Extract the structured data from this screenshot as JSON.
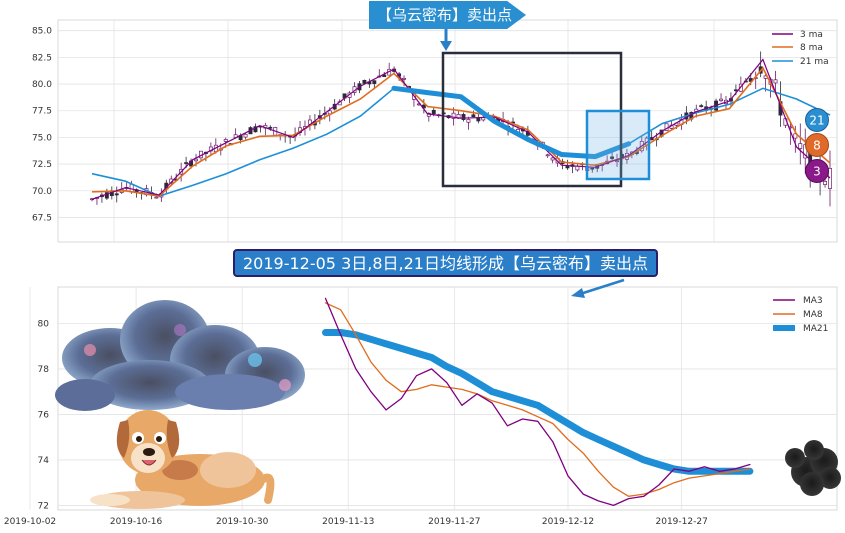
{
  "callouts": {
    "top": "【乌云密布】卖出点",
    "middle": "2019-12-05 3日,8日,21日均线形成【乌云密布】卖出点"
  },
  "markers": [
    {
      "label": "21",
      "color": "#2a8fd0"
    },
    {
      "label": "8",
      "color": "#e06a2a"
    },
    {
      "label": "3",
      "color": "#8a1a8a"
    }
  ],
  "colors": {
    "ma3": "#800080",
    "ma8": "#e06c1e",
    "ma21": "#1e8fd6",
    "box_dark": "#2a2e3a",
    "box_blue": "#1e8fd6"
  },
  "chart_data": [
    {
      "type": "line",
      "subtype": "candlestick-with-moving-averages",
      "title": "",
      "xlabel": "",
      "ylabel": "",
      "ylim": [
        65.2,
        86.0
      ],
      "yticks": [
        "67.5",
        "70.0",
        "72.5",
        "75.0",
        "77.5",
        "80.0",
        "82.5",
        "85.0"
      ],
      "grid": true,
      "legend": "top-right",
      "series": [
        {
          "name": "3 ma",
          "values": [
            69.2,
            70.3,
            69.6,
            72.9,
            74.5,
            76.1,
            75.0,
            77.4,
            79.8,
            81.4,
            77.2,
            76.8,
            76.9,
            75.5,
            72.4,
            72.2,
            73.3,
            75.6,
            77.4,
            78.4,
            82.3,
            74.1,
            71.2
          ]
        },
        {
          "name": "8 ma",
          "values": [
            69.9,
            70.0,
            69.5,
            72.3,
            74.2,
            75.1,
            75.2,
            77.0,
            78.6,
            81.0,
            77.9,
            77.5,
            77.0,
            75.7,
            72.7,
            72.4,
            73.2,
            75.2,
            77.0,
            77.7,
            81.5,
            75.3,
            72.6
          ]
        },
        {
          "name": "21 ma",
          "values": [
            71.6,
            70.9,
            69.5,
            70.5,
            71.6,
            72.9,
            74.0,
            75.3,
            77.0,
            79.6,
            79.2,
            78.8,
            76.5,
            74.8,
            73.4,
            73.2,
            74.4,
            76.3,
            77.3,
            78.1,
            79.6,
            78.6,
            77.1
          ]
        }
      ],
      "annotation_boxes": [
        {
          "x": [
            9.5,
            16.5
          ],
          "y": [
            70.4,
            82.8
          ]
        },
        {
          "x": [
            16.0,
            18.5
          ],
          "y": [
            71.2,
            77.4
          ]
        }
      ]
    },
    {
      "type": "line",
      "title": "",
      "xlabel": "",
      "ylabel": "",
      "x": [
        "2019-11-10",
        "2019-11-12",
        "2019-11-14",
        "2019-11-16",
        "2019-11-18",
        "2019-11-20",
        "2019-11-22",
        "2019-11-24",
        "2019-11-26",
        "2019-11-28",
        "2019-11-30",
        "2019-12-02",
        "2019-12-04",
        "2019-12-06",
        "2019-12-08",
        "2019-12-10",
        "2019-12-12",
        "2019-12-14",
        "2019-12-16",
        "2019-12-18",
        "2019-12-20",
        "2019-12-22",
        "2019-12-24",
        "2019-12-26",
        "2019-12-28",
        "2019-12-30",
        "2020-01-01",
        "2020-01-03",
        "2020-01-05"
      ],
      "xticks": [
        "2019-10-02",
        "2019-10-16",
        "2019-10-30",
        "2019-11-13",
        "2019-11-27",
        "2019-12-12",
        "2019-12-27"
      ],
      "ylim": [
        71.8,
        81.6
      ],
      "yticks": [
        "72",
        "74",
        "76",
        "78",
        "80"
      ],
      "grid": true,
      "legend": "top-right",
      "series": [
        {
          "name": "MA3",
          "values": [
            81.1,
            79.5,
            78.0,
            77.0,
            76.2,
            76.7,
            77.7,
            78.0,
            77.4,
            76.4,
            76.9,
            76.5,
            75.5,
            75.8,
            75.7,
            74.8,
            73.3,
            72.5,
            72.2,
            72.0,
            72.3,
            72.4,
            72.9,
            73.6,
            73.5,
            73.7,
            73.5,
            73.6,
            73.8
          ]
        },
        {
          "name": "MA8",
          "values": [
            80.9,
            80.6,
            79.5,
            78.3,
            77.5,
            77.0,
            77.1,
            77.3,
            77.2,
            77.1,
            76.9,
            76.6,
            76.4,
            76.2,
            75.9,
            75.6,
            74.9,
            74.3,
            73.5,
            72.8,
            72.4,
            72.5,
            72.7,
            73.0,
            73.2,
            73.3,
            73.4,
            73.5,
            73.6
          ]
        },
        {
          "name": "MA21",
          "values": [
            79.6,
            79.6,
            79.5,
            79.3,
            79.1,
            78.9,
            78.7,
            78.5,
            78.1,
            77.8,
            77.4,
            77.0,
            76.8,
            76.6,
            76.4,
            76.0,
            75.6,
            75.2,
            74.9,
            74.6,
            74.3,
            74.0,
            73.8,
            73.6,
            73.5,
            73.5,
            73.5,
            73.5,
            73.5
          ]
        }
      ]
    }
  ]
}
